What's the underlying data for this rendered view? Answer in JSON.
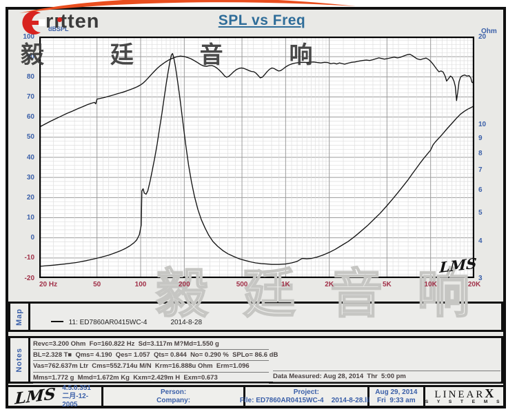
{
  "colors": {
    "axis_blue": "#3a5fa8",
    "axis_maroon": "#a03048",
    "title_teal": "#2f6d99",
    "swoosh_red": "#e94e1f",
    "curve_black": "#141414",
    "grid_minor": "#dedede",
    "grid_major": "#9c9c9c"
  },
  "header": {
    "brand": "rıtten",
    "title": "SPL vs Freq",
    "watermark": "毅 廷 音 响"
  },
  "chart_data": {
    "type": "line",
    "title": "SPL vs Freq",
    "x_axis": {
      "scale": "log",
      "min": 20,
      "max": 20000,
      "unit": "Hz",
      "tick_values": [
        20,
        50,
        100,
        200,
        500,
        1000,
        2000,
        5000,
        10000,
        20000
      ],
      "tick_labels": [
        "20 Hz",
        "50",
        "100",
        "200",
        "500",
        "1K",
        "2K",
        "5K",
        "10K",
        "20K"
      ],
      "grid": true
    },
    "y_left": {
      "label": "dBSPL",
      "scale": "linear",
      "min": -20,
      "max": 100,
      "tick_step": 10,
      "minor_step": 2
    },
    "y_right": {
      "label": "Ohm",
      "scale": "log",
      "min": 3,
      "max": 20,
      "ticks": [
        20,
        10,
        9,
        8,
        7,
        6,
        5,
        4,
        3
      ]
    },
    "corner_logo": "LMS",
    "series": [
      {
        "name": "SPL (dBSPL)",
        "axis": "left",
        "points": [
          [
            20,
            55
          ],
          [
            22,
            56.6
          ],
          [
            24,
            58
          ],
          [
            26,
            59.2
          ],
          [
            28,
            60.3
          ],
          [
            31,
            61.8
          ],
          [
            34,
            63
          ],
          [
            37,
            64.2
          ],
          [
            40,
            65.2
          ],
          [
            43,
            66.2
          ],
          [
            46,
            66.9
          ],
          [
            48,
            67.3
          ],
          [
            49,
            66.6
          ],
          [
            50,
            68.9
          ],
          [
            53,
            69.3
          ],
          [
            56,
            69.7
          ],
          [
            60,
            70.3
          ],
          [
            65,
            71
          ],
          [
            70,
            71.7
          ],
          [
            75,
            72.3
          ],
          [
            80,
            73
          ],
          [
            85,
            73.7
          ],
          [
            90,
            74.4
          ],
          [
            95,
            75.1
          ],
          [
            100,
            76
          ],
          [
            104,
            76.9
          ],
          [
            108,
            78
          ],
          [
            113,
            79.5
          ],
          [
            118,
            81
          ],
          [
            124,
            82.7
          ],
          [
            130,
            84.2
          ],
          [
            136,
            85.4
          ],
          [
            142,
            86.4
          ],
          [
            148,
            87.3
          ],
          [
            155,
            88.2
          ],
          [
            162,
            88.9
          ],
          [
            170,
            89.5
          ],
          [
            178,
            90
          ],
          [
            188,
            90.3
          ],
          [
            200,
            90.1
          ],
          [
            210,
            89.6
          ],
          [
            222,
            89
          ],
          [
            235,
            88
          ],
          [
            248,
            87
          ],
          [
            260,
            86
          ],
          [
            272,
            85.4
          ],
          [
            284,
            85.2
          ],
          [
            296,
            85.5
          ],
          [
            310,
            85.6
          ],
          [
            322,
            85.2
          ],
          [
            335,
            84.4
          ],
          [
            350,
            83.2
          ],
          [
            365,
            81.9
          ],
          [
            380,
            80.4
          ],
          [
            392,
            79.8
          ],
          [
            405,
            80.2
          ],
          [
            420,
            81.2
          ],
          [
            438,
            82.5
          ],
          [
            458,
            83.6
          ],
          [
            478,
            84.2
          ],
          [
            495,
            84.4
          ],
          [
            515,
            84.2
          ],
          [
            535,
            83.7
          ],
          [
            558,
            83.1
          ],
          [
            580,
            82.7
          ],
          [
            605,
            82.5
          ],
          [
            625,
            81.8
          ],
          [
            648,
            80.6
          ],
          [
            668,
            79.5
          ],
          [
            690,
            79.8
          ],
          [
            715,
            81
          ],
          [
            745,
            82.6
          ],
          [
            775,
            83.8
          ],
          [
            805,
            84.4
          ],
          [
            835,
            84.1
          ],
          [
            865,
            83.4
          ],
          [
            895,
            82.9
          ],
          [
            925,
            83.1
          ],
          [
            960,
            83.9
          ],
          [
            1000,
            84.9
          ],
          [
            1050,
            85.8
          ],
          [
            1100,
            86.4
          ],
          [
            1160,
            86.8
          ],
          [
            1240,
            87.1
          ],
          [
            1320,
            87.2
          ],
          [
            1400,
            87.1
          ],
          [
            1480,
            87.3
          ],
          [
            1560,
            87.4
          ],
          [
            1650,
            87.1
          ],
          [
            1750,
            86.9
          ],
          [
            1850,
            87.2
          ],
          [
            1950,
            87.1
          ],
          [
            2050,
            86.5
          ],
          [
            2150,
            86.8
          ],
          [
            2250,
            86.4
          ],
          [
            2350,
            86.9
          ],
          [
            2450,
            86.6
          ],
          [
            2550,
            86.3
          ],
          [
            2700,
            86.8
          ],
          [
            2850,
            87.2
          ],
          [
            3000,
            87.4
          ],
          [
            3200,
            87.8
          ],
          [
            3400,
            88.1
          ],
          [
            3600,
            88.3
          ],
          [
            3800,
            88.1
          ],
          [
            4000,
            88.5
          ],
          [
            4200,
            89
          ],
          [
            4400,
            89.4
          ],
          [
            4600,
            89.1
          ],
          [
            4800,
            88.8
          ],
          [
            5000,
            89
          ],
          [
            5300,
            89.4
          ],
          [
            5600,
            89.8
          ],
          [
            5900,
            89.4
          ],
          [
            6200,
            89.7
          ],
          [
            6500,
            90.3
          ],
          [
            6900,
            91
          ],
          [
            7200,
            91.2
          ],
          [
            7500,
            90.5
          ],
          [
            7800,
            89.6
          ],
          [
            8100,
            88.9
          ],
          [
            8500,
            88.5
          ],
          [
            8900,
            89
          ],
          [
            9300,
            89.3
          ],
          [
            9700,
            88.6
          ],
          [
            10100,
            87.4
          ],
          [
            10500,
            85.9
          ],
          [
            11000,
            83.9
          ],
          [
            11400,
            82.5
          ],
          [
            11800,
            82.9
          ],
          [
            12200,
            82.4
          ],
          [
            12600,
            80.3
          ],
          [
            12900,
            77.9
          ],
          [
            13300,
            79.1
          ],
          [
            13700,
            80.4
          ],
          [
            14100,
            79.7
          ],
          [
            14500,
            77.8
          ],
          [
            14800,
            75.2
          ],
          [
            15100,
            68.2
          ],
          [
            15400,
            72.5
          ],
          [
            15700,
            77.5
          ],
          [
            16100,
            79.9
          ],
          [
            16600,
            80.6
          ],
          [
            17200,
            80.9
          ],
          [
            17800,
            80.4
          ],
          [
            18400,
            80.6
          ],
          [
            18900,
            79.6
          ],
          [
            19300,
            77.3
          ],
          [
            19600,
            77
          ],
          [
            19800,
            78.6
          ],
          [
            20000,
            80.6
          ]
        ]
      },
      {
        "name": "Impedance (Ohm)",
        "axis": "right",
        "points": [
          [
            20,
            3.29
          ],
          [
            25,
            3.32
          ],
          [
            30,
            3.35
          ],
          [
            36,
            3.39
          ],
          [
            42,
            3.44
          ],
          [
            48,
            3.49
          ],
          [
            54,
            3.54
          ],
          [
            60,
            3.59
          ],
          [
            66,
            3.65
          ],
          [
            72,
            3.71
          ],
          [
            78,
            3.78
          ],
          [
            84,
            3.86
          ],
          [
            90,
            3.96
          ],
          [
            94,
            4.05
          ],
          [
            98,
            4.22
          ],
          [
            101,
            4.55
          ],
          [
            102,
            5.95
          ],
          [
            104,
            6.05
          ],
          [
            106,
            5.85
          ],
          [
            109,
            5.8
          ],
          [
            112,
            5.95
          ],
          [
            116,
            6.4
          ],
          [
            120,
            6.95
          ],
          [
            125,
            7.7
          ],
          [
            130,
            8.6
          ],
          [
            135,
            9.7
          ],
          [
            140,
            10.9
          ],
          [
            145,
            12.3
          ],
          [
            150,
            13.8
          ],
          [
            155,
            15.2
          ],
          [
            159,
            16.4
          ],
          [
            163,
            17.3
          ],
          [
            166,
            17.5
          ],
          [
            169,
            17
          ],
          [
            173,
            16
          ],
          [
            178,
            14.6
          ],
          [
            184,
            13
          ],
          [
            190,
            11.5
          ],
          [
            197,
            9.9
          ],
          [
            205,
            8.5
          ],
          [
            214,
            7.3
          ],
          [
            224,
            6.4
          ],
          [
            235,
            5.7
          ],
          [
            248,
            5.15
          ],
          [
            262,
            4.75
          ],
          [
            278,
            4.45
          ],
          [
            295,
            4.2
          ],
          [
            315,
            4
          ],
          [
            340,
            3.85
          ],
          [
            370,
            3.72
          ],
          [
            400,
            3.63
          ],
          [
            440,
            3.55
          ],
          [
            480,
            3.49
          ],
          [
            520,
            3.45
          ],
          [
            570,
            3.41
          ],
          [
            620,
            3.38
          ],
          [
            680,
            3.36
          ],
          [
            740,
            3.35
          ],
          [
            800,
            3.34
          ],
          [
            900,
            3.34
          ],
          [
            1000,
            3.35
          ],
          [
            1100,
            3.38
          ],
          [
            1200,
            3.42
          ],
          [
            1300,
            3.5
          ],
          [
            1400,
            3.49
          ],
          [
            1500,
            3.5
          ],
          [
            1650,
            3.54
          ],
          [
            1800,
            3.59
          ],
          [
            2000,
            3.67
          ],
          [
            2200,
            3.76
          ],
          [
            2400,
            3.86
          ],
          [
            2700,
            4
          ],
          [
            3000,
            4.16
          ],
          [
            3300,
            4.33
          ],
          [
            3700,
            4.55
          ],
          [
            4100,
            4.78
          ],
          [
            4500,
            5
          ],
          [
            5000,
            5.3
          ],
          [
            5500,
            5.6
          ],
          [
            6000,
            5.9
          ],
          [
            6500,
            6.2
          ],
          [
            7000,
            6.5
          ],
          [
            7500,
            6.82
          ],
          [
            8000,
            7.12
          ],
          [
            8500,
            7.42
          ],
          [
            9000,
            7.7
          ],
          [
            9500,
            7.95
          ],
          [
            10000,
            8.2
          ],
          [
            10400,
            8.55
          ],
          [
            10800,
            8.75
          ],
          [
            11500,
            9.05
          ],
          [
            12200,
            9.35
          ],
          [
            13000,
            9.7
          ],
          [
            14000,
            10.1
          ],
          [
            15000,
            10.5
          ],
          [
            16000,
            10.85
          ],
          [
            17000,
            11.1
          ],
          [
            18000,
            11.3
          ],
          [
            19000,
            11.45
          ],
          [
            20000,
            11.62
          ]
        ]
      }
    ]
  },
  "map": {
    "tab": "Map",
    "legend_name": "11: ED7860AR0415WC-4",
    "legend_date": "2014-8-28"
  },
  "notes": {
    "tab": "Notes",
    "lines": [
      "Revc=3.200 Ohm  Fo=160.822 Hz  Sd=3.117m M?Md=1.550 g",
      "BL=2.328 T■  Qms= 4.190  Qes= 1.057  Qts= 0.844  No= 0.290 %  SPLo= 86.6 dB",
      "Vas=762.637m Ltr  Cms=552.714u M/N  Krm=16.888u Ohm  Erm=1.096",
      "Mms=1.772 g  Mmd=1.672m Kg  Kxm=2.429m H  Exm=0.673"
    ],
    "data_measured": "Data Measured: Aug 28, 2014  Thr  5:00 pm"
  },
  "footer": {
    "lms_logo": "LMS",
    "version": "4.5.0.351",
    "version_date": "二月-12-2005",
    "person_label": "Person:",
    "company_label": "Company:",
    "project_label": "Project:",
    "file_line": "File: ED7860AR0415WC-4    2014-8-28.lib",
    "date": "Aug 29, 2014",
    "time": "Fri  9:33 am",
    "brand_top": "LINEAR",
    "brand_x": "X",
    "brand_bottom": "S  Y  S  T  E  M  S"
  },
  "watermark_bottom": "毅 廷 音 响"
}
